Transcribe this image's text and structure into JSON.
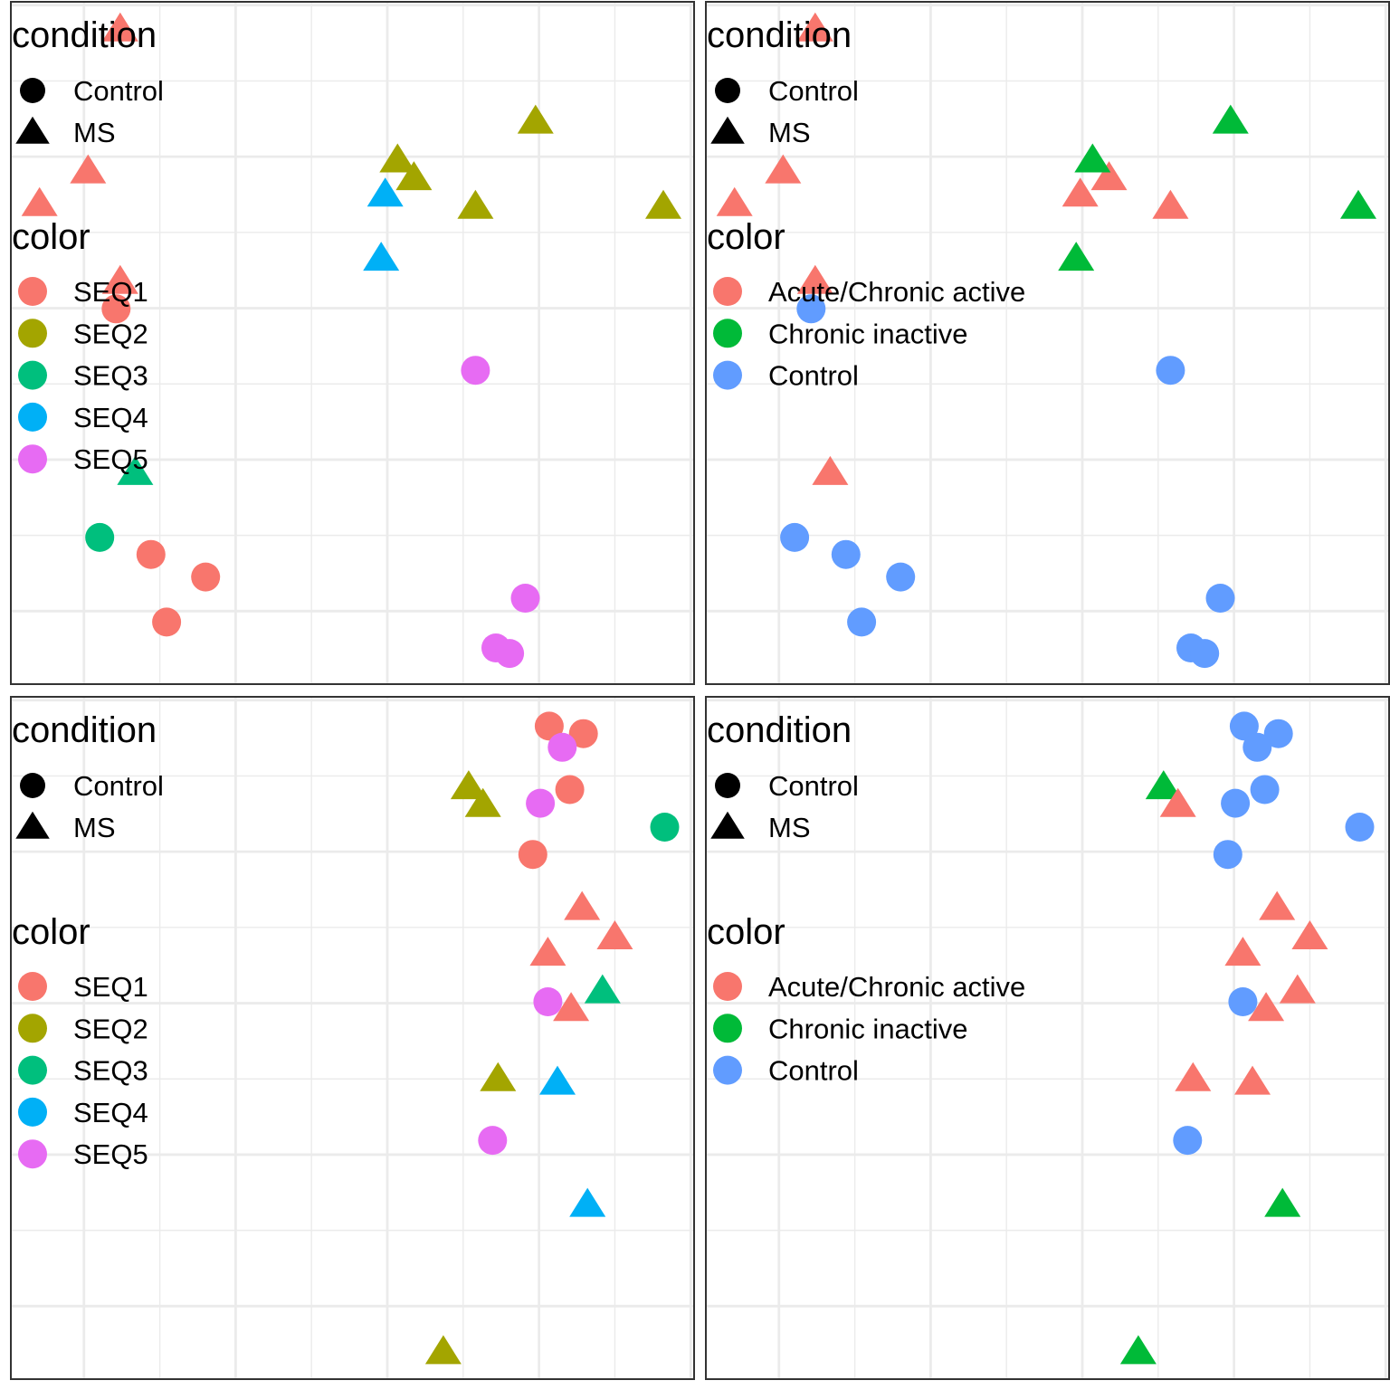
{
  "colors": {
    "SEQ1": "#F8766D",
    "SEQ2": "#A3A500",
    "SEQ3": "#00BF7D",
    "SEQ4": "#00B0F6",
    "SEQ5": "#E76BF3",
    "Acute/Chronic active": "#F8766D",
    "Chronic inactive": "#00BA38",
    "Control": "#619CFF",
    "key": "#000000",
    "grid": "#EBEBEB",
    "border": "#333333"
  },
  "legend": {
    "shape_title": "condition",
    "shape_items": [
      "Control",
      "MS"
    ],
    "color_title": "color",
    "seq_items": [
      "SEQ1",
      "SEQ2",
      "SEQ3",
      "SEQ4",
      "SEQ5"
    ],
    "lesion_items": [
      "Acute/Chronic active",
      "Chronic inactive",
      "Control"
    ]
  },
  "chart_data": [
    {
      "type": "scatter",
      "panel": "top-left",
      "color_by": "batch",
      "grid": true,
      "legend_placement": "top-left",
      "xlim": [
        0,
        100
      ],
      "ylim": [
        0,
        100
      ],
      "points": [
        {
          "x": 16.0,
          "y": 96.0,
          "condition": "MS",
          "color": "SEQ1"
        },
        {
          "x": 11.3,
          "y": 75.2,
          "condition": "MS",
          "color": "SEQ1"
        },
        {
          "x": 4.2,
          "y": 70.4,
          "condition": "MS",
          "color": "SEQ1"
        },
        {
          "x": 16.0,
          "y": 59.0,
          "condition": "MS",
          "color": "SEQ1"
        },
        {
          "x": 18.2,
          "y": 31.0,
          "condition": "MS",
          "color": "SEQ3"
        },
        {
          "x": 76.8,
          "y": 82.5,
          "condition": "MS",
          "color": "SEQ2"
        },
        {
          "x": 56.6,
          "y": 76.8,
          "condition": "MS",
          "color": "SEQ2"
        },
        {
          "x": 59.0,
          "y": 74.2,
          "condition": "MS",
          "color": "SEQ2"
        },
        {
          "x": 68.0,
          "y": 70.0,
          "condition": "MS",
          "color": "SEQ2"
        },
        {
          "x": 95.5,
          "y": 70.0,
          "condition": "MS",
          "color": "SEQ2"
        },
        {
          "x": 54.8,
          "y": 71.8,
          "condition": "MS",
          "color": "SEQ4"
        },
        {
          "x": 54.2,
          "y": 62.4,
          "condition": "MS",
          "color": "SEQ4"
        },
        {
          "x": 15.4,
          "y": 55.0,
          "condition": "Control",
          "color": "SEQ1"
        },
        {
          "x": 20.5,
          "y": 19.0,
          "condition": "Control",
          "color": "SEQ1"
        },
        {
          "x": 28.5,
          "y": 15.7,
          "condition": "Control",
          "color": "SEQ1"
        },
        {
          "x": 22.8,
          "y": 9.1,
          "condition": "Control",
          "color": "SEQ1"
        },
        {
          "x": 13.0,
          "y": 21.5,
          "condition": "Control",
          "color": "SEQ3"
        },
        {
          "x": 68.0,
          "y": 46.0,
          "condition": "Control",
          "color": "SEQ5"
        },
        {
          "x": 75.3,
          "y": 12.6,
          "condition": "Control",
          "color": "SEQ5"
        },
        {
          "x": 71.0,
          "y": 5.3,
          "condition": "Control",
          "color": "SEQ5"
        },
        {
          "x": 73.0,
          "y": 4.5,
          "condition": "Control",
          "color": "SEQ5"
        }
      ]
    },
    {
      "type": "scatter",
      "panel": "top-right",
      "color_by": "lesion",
      "grid": true,
      "legend_placement": "top-left",
      "xlim": [
        0,
        100
      ],
      "ylim": [
        0,
        100
      ],
      "points": [
        {
          "x": 16.0,
          "y": 96.0,
          "condition": "MS",
          "color": "Acute/Chronic active"
        },
        {
          "x": 11.3,
          "y": 75.2,
          "condition": "MS",
          "color": "Acute/Chronic active"
        },
        {
          "x": 4.2,
          "y": 70.4,
          "condition": "MS",
          "color": "Acute/Chronic active"
        },
        {
          "x": 16.0,
          "y": 59.0,
          "condition": "MS",
          "color": "Acute/Chronic active"
        },
        {
          "x": 18.2,
          "y": 31.0,
          "condition": "MS",
          "color": "Acute/Chronic active"
        },
        {
          "x": 59.0,
          "y": 74.2,
          "condition": "MS",
          "color": "Acute/Chronic active"
        },
        {
          "x": 54.8,
          "y": 71.8,
          "condition": "MS",
          "color": "Acute/Chronic active"
        },
        {
          "x": 68.0,
          "y": 70.0,
          "condition": "MS",
          "color": "Acute/Chronic active"
        },
        {
          "x": 76.8,
          "y": 82.5,
          "condition": "MS",
          "color": "Chronic inactive"
        },
        {
          "x": 56.6,
          "y": 76.8,
          "condition": "MS",
          "color": "Chronic inactive"
        },
        {
          "x": 95.5,
          "y": 70.0,
          "condition": "MS",
          "color": "Chronic inactive"
        },
        {
          "x": 54.2,
          "y": 62.4,
          "condition": "MS",
          "color": "Chronic inactive"
        },
        {
          "x": 15.4,
          "y": 55.0,
          "condition": "Control",
          "color": "Control"
        },
        {
          "x": 68.0,
          "y": 46.0,
          "condition": "Control",
          "color": "Control"
        },
        {
          "x": 13.0,
          "y": 21.5,
          "condition": "Control",
          "color": "Control"
        },
        {
          "x": 20.5,
          "y": 19.0,
          "condition": "Control",
          "color": "Control"
        },
        {
          "x": 28.5,
          "y": 15.7,
          "condition": "Control",
          "color": "Control"
        },
        {
          "x": 75.3,
          "y": 12.6,
          "condition": "Control",
          "color": "Control"
        },
        {
          "x": 22.8,
          "y": 9.1,
          "condition": "Control",
          "color": "Control"
        },
        {
          "x": 71.0,
          "y": 5.3,
          "condition": "Control",
          "color": "Control"
        },
        {
          "x": 73.0,
          "y": 4.5,
          "condition": "Control",
          "color": "Control"
        }
      ]
    },
    {
      "type": "scatter",
      "panel": "bottom-left",
      "color_by": "batch",
      "grid": true,
      "legend_placement": "top-left",
      "xlim": [
        0,
        100
      ],
      "ylim": [
        0,
        100
      ],
      "points": [
        {
          "x": 78.8,
          "y": 95.7,
          "condition": "Control",
          "color": "SEQ1"
        },
        {
          "x": 83.8,
          "y": 94.6,
          "condition": "Control",
          "color": "SEQ1"
        },
        {
          "x": 81.8,
          "y": 86.4,
          "condition": "Control",
          "color": "SEQ1"
        },
        {
          "x": 76.4,
          "y": 76.9,
          "condition": "Control",
          "color": "SEQ1"
        },
        {
          "x": 80.7,
          "y": 92.6,
          "condition": "Control",
          "color": "SEQ5"
        },
        {
          "x": 77.5,
          "y": 84.4,
          "condition": "Control",
          "color": "SEQ5"
        },
        {
          "x": 78.6,
          "y": 55.3,
          "condition": "Control",
          "color": "SEQ5"
        },
        {
          "x": 70.5,
          "y": 35.0,
          "condition": "Control",
          "color": "SEQ5"
        },
        {
          "x": 95.7,
          "y": 80.9,
          "condition": "Control",
          "color": "SEQ3"
        },
        {
          "x": 67.0,
          "y": 86.8,
          "condition": "MS",
          "color": "SEQ2"
        },
        {
          "x": 69.1,
          "y": 84.2,
          "condition": "MS",
          "color": "SEQ2"
        },
        {
          "x": 71.3,
          "y": 44.0,
          "condition": "MS",
          "color": "SEQ2"
        },
        {
          "x": 63.3,
          "y": 4.0,
          "condition": "MS",
          "color": "SEQ2"
        },
        {
          "x": 83.6,
          "y": 69.1,
          "condition": "MS",
          "color": "SEQ1"
        },
        {
          "x": 88.4,
          "y": 64.8,
          "condition": "MS",
          "color": "SEQ1"
        },
        {
          "x": 78.6,
          "y": 62.4,
          "condition": "MS",
          "color": "SEQ1"
        },
        {
          "x": 82.0,
          "y": 54.3,
          "condition": "MS",
          "color": "SEQ1"
        },
        {
          "x": 86.6,
          "y": 56.9,
          "condition": "MS",
          "color": "SEQ3"
        },
        {
          "x": 80.0,
          "y": 43.5,
          "condition": "MS",
          "color": "SEQ4"
        },
        {
          "x": 84.4,
          "y": 25.6,
          "condition": "MS",
          "color": "SEQ4"
        }
      ]
    },
    {
      "type": "scatter",
      "panel": "bottom-right",
      "color_by": "lesion",
      "grid": true,
      "legend_placement": "top-left",
      "xlim": [
        0,
        100
      ],
      "ylim": [
        0,
        100
      ],
      "points": [
        {
          "x": 78.8,
          "y": 95.7,
          "condition": "Control",
          "color": "Control"
        },
        {
          "x": 83.8,
          "y": 94.6,
          "condition": "Control",
          "color": "Control"
        },
        {
          "x": 80.7,
          "y": 92.6,
          "condition": "Control",
          "color": "Control"
        },
        {
          "x": 81.8,
          "y": 86.4,
          "condition": "Control",
          "color": "Control"
        },
        {
          "x": 77.5,
          "y": 84.4,
          "condition": "Control",
          "color": "Control"
        },
        {
          "x": 95.7,
          "y": 80.9,
          "condition": "Control",
          "color": "Control"
        },
        {
          "x": 76.4,
          "y": 76.9,
          "condition": "Control",
          "color": "Control"
        },
        {
          "x": 78.6,
          "y": 55.3,
          "condition": "Control",
          "color": "Control"
        },
        {
          "x": 70.5,
          "y": 35.0,
          "condition": "Control",
          "color": "Control"
        },
        {
          "x": 67.0,
          "y": 86.8,
          "condition": "MS",
          "color": "Chronic inactive"
        },
        {
          "x": 84.4,
          "y": 25.6,
          "condition": "MS",
          "color": "Chronic inactive"
        },
        {
          "x": 63.3,
          "y": 4.0,
          "condition": "MS",
          "color": "Chronic inactive"
        },
        {
          "x": 69.1,
          "y": 84.2,
          "condition": "MS",
          "color": "Acute/Chronic active"
        },
        {
          "x": 83.6,
          "y": 69.1,
          "condition": "MS",
          "color": "Acute/Chronic active"
        },
        {
          "x": 88.4,
          "y": 64.8,
          "condition": "MS",
          "color": "Acute/Chronic active"
        },
        {
          "x": 78.6,
          "y": 62.4,
          "condition": "MS",
          "color": "Acute/Chronic active"
        },
        {
          "x": 86.6,
          "y": 56.9,
          "condition": "MS",
          "color": "Acute/Chronic active"
        },
        {
          "x": 82.0,
          "y": 54.3,
          "condition": "MS",
          "color": "Acute/Chronic active"
        },
        {
          "x": 71.3,
          "y": 44.0,
          "condition": "MS",
          "color": "Acute/Chronic active"
        },
        {
          "x": 80.0,
          "y": 43.5,
          "condition": "MS",
          "color": "Acute/Chronic active"
        }
      ]
    }
  ]
}
